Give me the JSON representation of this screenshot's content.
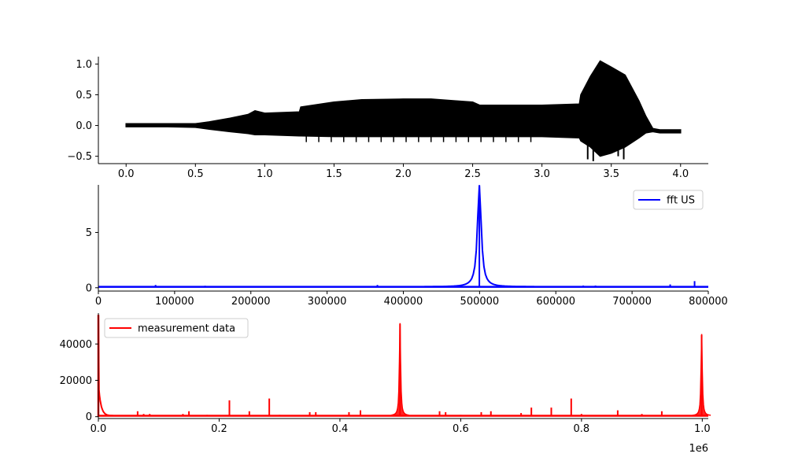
{
  "chart_data": [
    {
      "type": "line",
      "xlim": [
        -0.2,
        4.2
      ],
      "ylim": [
        -0.62,
        1.12
      ],
      "xticks": [
        0.0,
        0.5,
        1.0,
        1.5,
        2.0,
        2.5,
        3.0,
        3.5,
        4.0
      ],
      "xtick_labels": [
        "0.0",
        "0.5",
        "1.0",
        "1.5",
        "2.0",
        "2.5",
        "3.0",
        "3.5",
        "4.0"
      ],
      "yticks": [
        -0.5,
        0.0,
        0.5,
        1.0
      ],
      "ytick_labels": [
        "−0.5",
        "0.0",
        "0.5",
        "1.0"
      ],
      "legend": null,
      "series": [
        {
          "color": "#000000",
          "envelope_x": [
            0.0,
            0.3,
            0.5,
            0.6,
            0.75,
            0.88,
            0.93,
            1.0,
            1.25,
            1.26,
            1.5,
            1.7,
            2.0,
            2.2,
            2.5,
            2.55,
            2.7,
            3.0,
            3.27,
            3.28,
            3.35,
            3.42,
            3.5,
            3.6,
            3.7,
            3.75,
            3.8,
            3.85,
            4.0
          ],
          "envelope_upper": [
            0.03,
            0.03,
            0.03,
            0.06,
            0.12,
            0.18,
            0.24,
            0.2,
            0.22,
            0.3,
            0.38,
            0.42,
            0.43,
            0.43,
            0.38,
            0.33,
            0.33,
            0.33,
            0.35,
            0.5,
            0.8,
            1.05,
            0.95,
            0.82,
            0.4,
            0.15,
            -0.05,
            -0.07,
            -0.07
          ],
          "envelope_lower": [
            -0.02,
            -0.02,
            -0.03,
            -0.06,
            -0.1,
            -0.13,
            -0.15,
            -0.15,
            -0.17,
            -0.17,
            -0.18,
            -0.18,
            -0.18,
            -0.18,
            -0.18,
            -0.18,
            -0.18,
            -0.18,
            -0.2,
            -0.25,
            -0.35,
            -0.5,
            -0.45,
            -0.35,
            -0.2,
            -0.12,
            -0.1,
            -0.12,
            -0.12
          ],
          "spikes": [
            [
              3.33,
              -0.55
            ],
            [
              3.37,
              -0.58
            ],
            [
              3.45,
              -0.45
            ],
            [
              3.55,
              -0.5
            ],
            [
              3.59,
              -0.55
            ],
            [
              4.0,
              0.0
            ]
          ]
        }
      ]
    },
    {
      "type": "line",
      "xlim": [
        0,
        800000
      ],
      "ylim": [
        -0.3,
        9.3
      ],
      "xticks": [
        0,
        100000,
        200000,
        300000,
        400000,
        500000,
        600000,
        700000,
        800000
      ],
      "xtick_labels": [
        "0",
        "100000",
        "200000",
        "300000",
        "400000",
        "500000",
        "600000",
        "700000",
        "800000"
      ],
      "yticks": [
        0,
        5
      ],
      "ytick_labels": [
        "0",
        "5"
      ],
      "legend": "upper right",
      "series": [
        {
          "name": "fft US",
          "color": "#0000ff",
          "baseline": 0.08,
          "peaks": [
            [
              75000,
              0.25
            ],
            [
              140000,
              0.18
            ],
            [
              366000,
              0.25
            ],
            [
              499700,
              9.2
            ],
            [
              636000,
              0.2
            ],
            [
              652000,
              0.2
            ],
            [
              750000,
              0.3
            ],
            [
              782000,
              0.6
            ]
          ],
          "main_peak_width": 12000
        }
      ]
    },
    {
      "type": "line",
      "xlim": [
        0,
        1010000
      ],
      "ylim": [
        -1000,
        57000
      ],
      "xticks": [
        0,
        200000,
        400000,
        600000,
        800000,
        1000000
      ],
      "xtick_labels": [
        "0.0",
        "0.2",
        "0.4",
        "0.6",
        "0.8",
        "1.0"
      ],
      "offset_text": "1e6",
      "yticks": [
        0,
        20000,
        40000
      ],
      "ytick_labels": [
        "0",
        "20000",
        "40000"
      ],
      "legend": "upper left",
      "series": [
        {
          "name": "measurement data",
          "color": "#ff0000",
          "baseline": 500,
          "dc_peak": 56000,
          "peaks": [
            [
              65000,
              3000
            ],
            [
              75000,
              1500
            ],
            [
              85000,
              1500
            ],
            [
              140000,
              1500
            ],
            [
              150000,
              3000
            ],
            [
              180000,
              1000
            ],
            [
              217000,
              9000
            ],
            [
              250000,
              3000
            ],
            [
              283000,
              10000
            ],
            [
              300000,
              1000
            ],
            [
              350000,
              2500
            ],
            [
              360000,
              2500
            ],
            [
              415000,
              2500
            ],
            [
              434000,
              3500
            ],
            [
              499500,
              51000
            ],
            [
              565000,
              3000
            ],
            [
              575000,
              2500
            ],
            [
              600000,
              1000
            ],
            [
              634000,
              2500
            ],
            [
              650000,
              3000
            ],
            [
              700000,
              2000
            ],
            [
              717000,
              5000
            ],
            [
              750000,
              5000
            ],
            [
              783000,
              10000
            ],
            [
              800000,
              1500
            ],
            [
              860000,
              3500
            ],
            [
              900000,
              1500
            ],
            [
              933000,
              3000
            ],
            [
              999000,
              45000
            ]
          ]
        }
      ]
    }
  ]
}
